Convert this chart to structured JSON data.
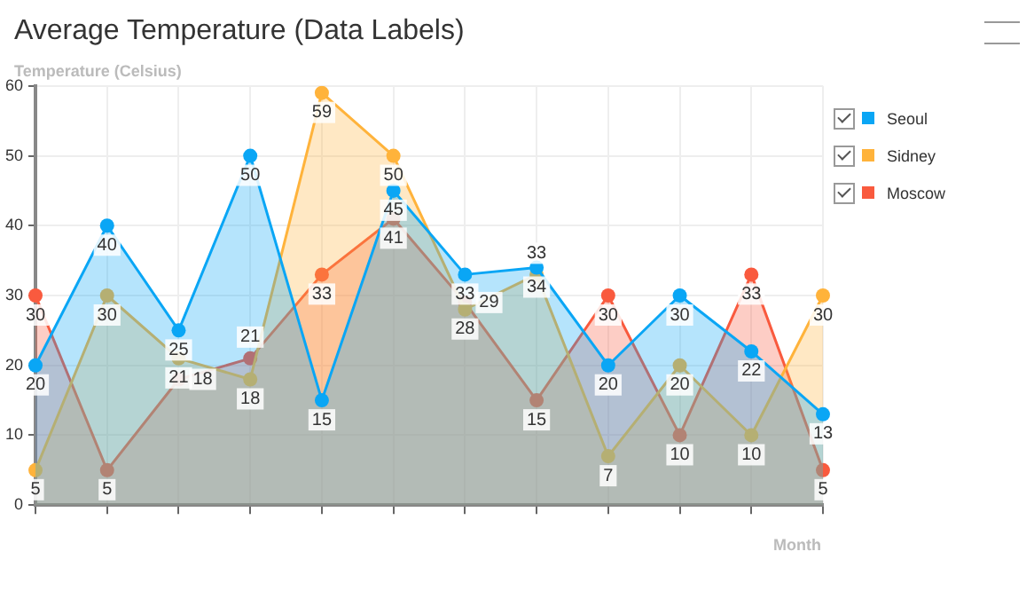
{
  "chart_data": {
    "type": "area",
    "title": "Average Temperature (Data Labels)",
    "xlabel": "Month",
    "ylabel": "Temperature (Celsius)",
    "categories": [
      null,
      null,
      null,
      null,
      null,
      null,
      null,
      null,
      null,
      null,
      null,
      null
    ],
    "series": [
      {
        "name": "Seoul",
        "color": "#0aa6f5",
        "values": [
          20,
          40,
          25,
          50,
          15,
          45,
          33,
          34,
          20,
          30,
          22,
          13
        ]
      },
      {
        "name": "Sidney",
        "color": "#ffb33b",
        "values": [
          5,
          30,
          21,
          18,
          59,
          50,
          28,
          33,
          7,
          20,
          10,
          30
        ]
      },
      {
        "name": "Moscow",
        "color": "#f95a3e",
        "values": [
          30,
          5,
          18,
          21,
          33,
          41,
          29,
          15,
          30,
          10,
          33,
          5
        ]
      }
    ],
    "ylim": [
      0,
      60
    ],
    "yticks": [
      0,
      10,
      20,
      30,
      40,
      50,
      60
    ],
    "grid": true,
    "legend": "right",
    "marker": "circle",
    "data_labels": true
  }
}
